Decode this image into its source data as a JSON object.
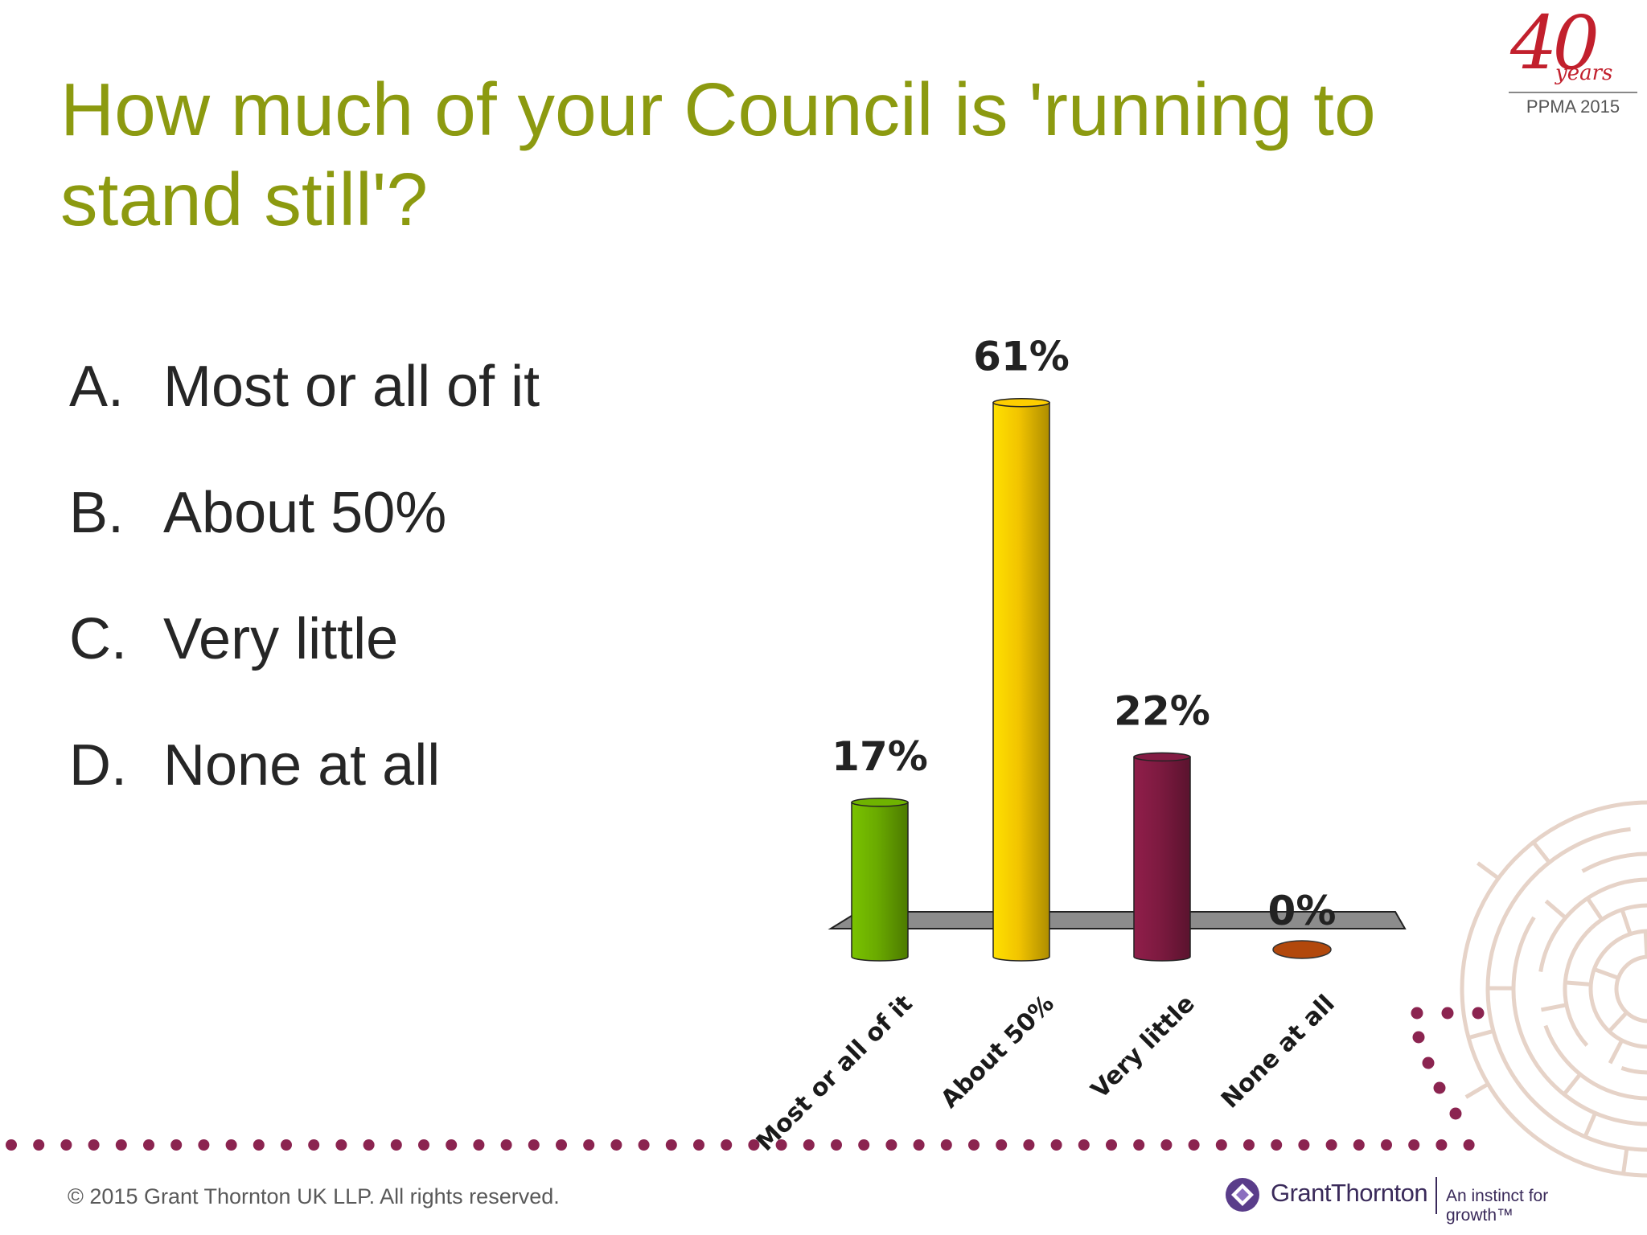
{
  "slide": {
    "title": "How much of your Council is 'running to stand still'?",
    "options": [
      {
        "letter": "A.",
        "text": "Most or all of it"
      },
      {
        "letter": "B.",
        "text": "About 50%"
      },
      {
        "letter": "C.",
        "text": "Very little"
      },
      {
        "letter": "D.",
        "text": "None at all"
      }
    ],
    "badge": {
      "number": "40",
      "word": "years",
      "event": "PPMA 2015"
    },
    "footer": {
      "copyright": "© 2015 Grant Thornton UK LLP. All rights reserved.",
      "brand": "GrantThornton",
      "tagline": "An instinct for growth™"
    }
  },
  "colors": {
    "title": "#8c9a10",
    "dots": "#8b2450",
    "maze": "#e6d3c8",
    "floor": "#8c8c8c",
    "brand": "#3a2a5a",
    "badge": "#c2202d"
  },
  "chart_data": {
    "type": "bar",
    "style": "3d-cylinder",
    "categories": [
      "Most or all of it",
      "About 50%",
      "Very little",
      "None at all"
    ],
    "values": [
      17,
      61,
      22,
      0
    ],
    "data_labels": [
      "17%",
      "61%",
      "22%",
      "0%"
    ],
    "colors": [
      "#6aaa00",
      "#f2c400",
      "#7d1a40",
      "#b2480c"
    ],
    "value_unit": "%",
    "grid": false,
    "legend": "none"
  }
}
